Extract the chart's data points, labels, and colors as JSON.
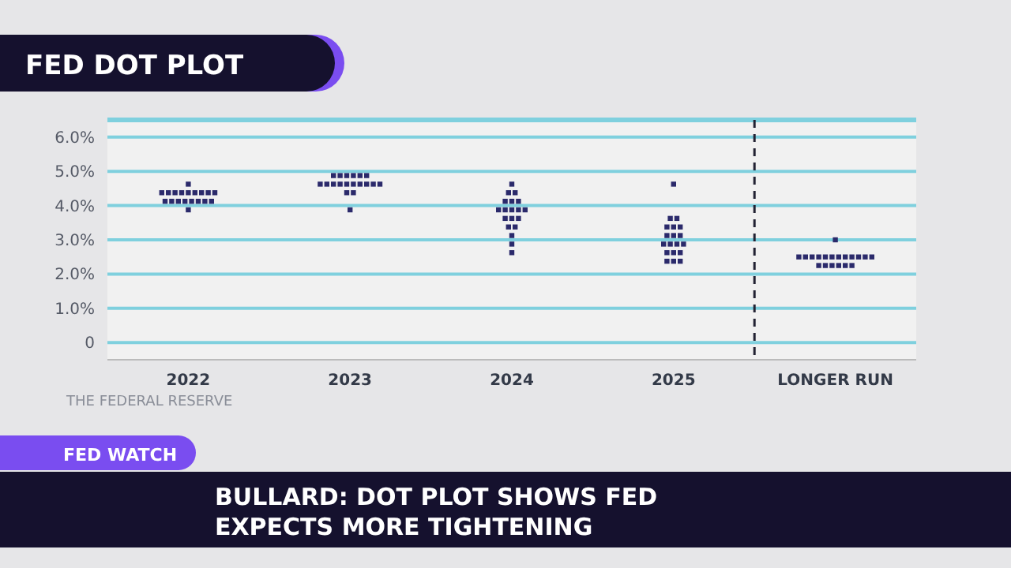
{
  "chart_data": {
    "type": "scatter",
    "title": "FED DOT PLOT",
    "categories": [
      "2022",
      "2023",
      "2024",
      "2025",
      "LONGER RUN"
    ],
    "series": [
      {
        "color": "#2b2a6b",
        "values": [
          4.625,
          4.875,
          4.625,
          4.625,
          3.0
        ]
      },
      {
        "color": "#2b2a6b",
        "values": [
          4.375,
          4.875,
          4.375,
          3.625,
          2.5
        ]
      },
      {
        "color": "#2b2a6b",
        "values": [
          4.375,
          4.875,
          4.375,
          3.625,
          2.5
        ]
      },
      {
        "color": "#2b2a6b",
        "values": [
          4.375,
          4.875,
          4.125,
          3.375,
          2.5
        ]
      },
      {
        "color": "#2b2a6b",
        "values": [
          4.375,
          4.875,
          4.125,
          3.375,
          2.5
        ]
      },
      {
        "color": "#2b2a6b",
        "values": [
          4.375,
          4.875,
          4.125,
          3.375,
          2.5
        ]
      },
      {
        "color": "#2b2a6b",
        "values": [
          4.375,
          4.625,
          3.875,
          3.125,
          2.5
        ]
      },
      {
        "color": "#2b2a6b",
        "values": [
          4.375,
          4.625,
          3.875,
          3.125,
          2.5
        ]
      },
      {
        "color": "#2b2a6b",
        "values": [
          4.375,
          4.625,
          3.875,
          3.125,
          2.5
        ]
      },
      {
        "color": "#2b2a6b",
        "values": [
          4.375,
          4.625,
          3.875,
          2.875,
          2.5
        ]
      },
      {
        "color": "#2b2a6b",
        "values": [
          4.125,
          4.625,
          3.875,
          2.875,
          2.5
        ]
      },
      {
        "color": "#2b2a6b",
        "values": [
          4.125,
          4.625,
          3.625,
          2.875,
          2.5
        ]
      },
      {
        "color": "#2b2a6b",
        "values": [
          4.125,
          4.625,
          3.625,
          2.875,
          2.5
        ]
      },
      {
        "color": "#2b2a6b",
        "values": [
          4.125,
          4.625,
          3.625,
          2.625,
          2.25
        ]
      },
      {
        "color": "#2b2a6b",
        "values": [
          4.125,
          4.625,
          3.375,
          2.625,
          2.25
        ]
      },
      {
        "color": "#2b2a6b",
        "values": [
          4.125,
          4.625,
          3.375,
          2.625,
          2.25
        ]
      },
      {
        "color": "#2b2a6b",
        "values": [
          4.125,
          4.375,
          3.125,
          2.375,
          2.25
        ]
      },
      {
        "color": "#2b2a6b",
        "values": [
          4.125,
          4.375,
          2.875,
          2.375,
          2.25
        ]
      },
      {
        "color": "#2b2a6b",
        "values": [
          3.875,
          3.875,
          2.625,
          2.375,
          2.25
        ]
      }
    ],
    "ylim": [
      -0.5,
      6.5
    ],
    "yticks": [
      0,
      {
        "value": 1,
        "label": "1.0%"
      },
      {
        "value": 2,
        "label": "2.0%"
      },
      {
        "value": 3,
        "label": "3.0%"
      },
      {
        "value": 4,
        "label": "4.0%"
      },
      {
        "value": 5,
        "label": "5.0%"
      },
      {
        "value": 6,
        "label": "6.0%"
      }
    ],
    "grid": "y",
    "marker": "square",
    "ref_lines": [
      {
        "axis": "x",
        "value": "LONGER RUN",
        "line_style": "dashed",
        "color": "#222233"
      }
    ],
    "annotations": [
      "THE FEDERAL RESERVE",
      "FED WATCH",
      "BULLARD: DOT PLOT SHOWS FED EXPECTS MORE TIGHTENING"
    ]
  }
}
